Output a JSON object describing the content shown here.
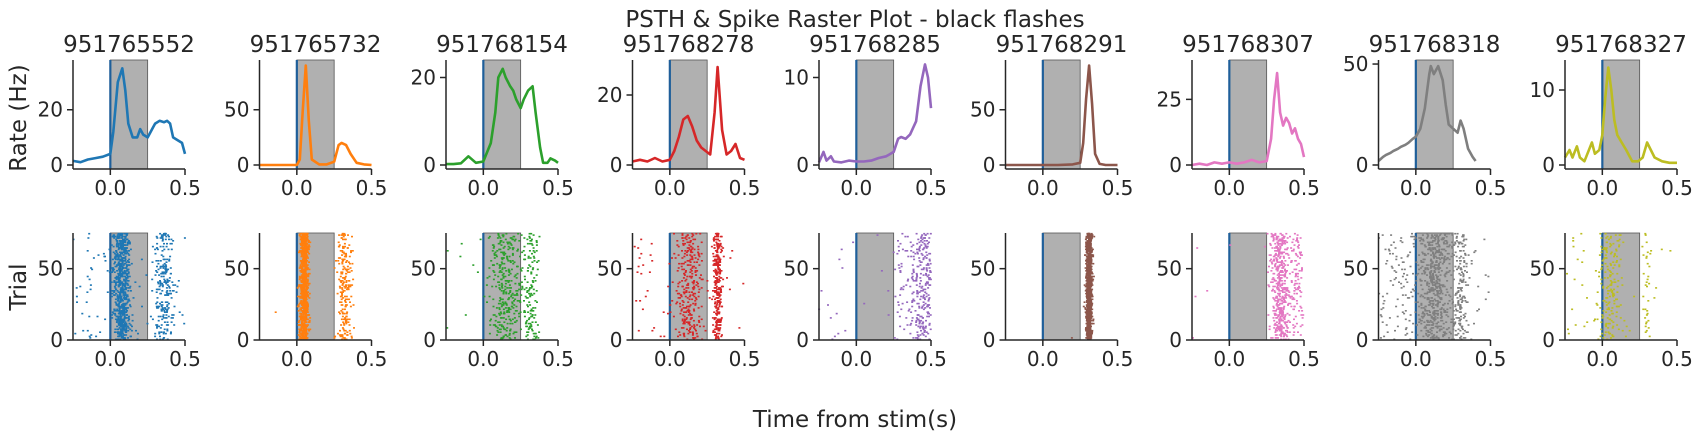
{
  "figure": {
    "title": "PSTH & Spike Raster Plot - black flashes",
    "xlabel": "Time from stim(s)",
    "psth_ylabel": "Rate (Hz)",
    "raster_ylabel": "Trial"
  },
  "chart_data": {
    "type": "line",
    "stim_window": [
      0,
      0.25
    ],
    "stim_onset": 0,
    "xlim": [
      -0.25,
      0.5
    ],
    "xticks": [
      0.0,
      0.5
    ],
    "xtick_labels": [
      "0.0",
      "0.5"
    ],
    "raster_ylim": [
      0,
      75
    ],
    "raster_yticks": [
      0,
      50
    ],
    "n_trials": 75,
    "colors": {
      "stim_shade": "#b0b0b0",
      "stim_line": "#1f5f9a"
    },
    "units": [
      {
        "name": "951765552",
        "color": "#1f77b4",
        "ylim": [
          0,
          38
        ],
        "yticks": [
          0,
          20
        ],
        "psth_x": [
          -0.25,
          -0.2,
          -0.15,
          -0.1,
          -0.05,
          0,
          0.02,
          0.05,
          0.08,
          0.1,
          0.12,
          0.15,
          0.18,
          0.2,
          0.22,
          0.25,
          0.28,
          0.3,
          0.33,
          0.36,
          0.38,
          0.4,
          0.42,
          0.45,
          0.48,
          0.5
        ],
        "psth_y": [
          1.5,
          1,
          2,
          2.5,
          3,
          4,
          12,
          30,
          35,
          27,
          15,
          10,
          10,
          13,
          11,
          10,
          13,
          15,
          16,
          15.5,
          16,
          15,
          10,
          9,
          8,
          4
        ],
        "raster": {
          "pre_density": 0.25,
          "peak": 0.08,
          "peak_width": 0.06,
          "peak_density": 6,
          "late": 0.36,
          "late_width": 0.07,
          "late_density": 3,
          "base_density": 0.5,
          "seed": 11
        }
      },
      {
        "name": "951765732",
        "color": "#ff7f0e",
        "ylim": [
          0,
          95
        ],
        "yticks": [
          0,
          50
        ],
        "psth_x": [
          -0.25,
          -0.15,
          -0.05,
          0,
          0.02,
          0.04,
          0.06,
          0.08,
          0.1,
          0.15,
          0.2,
          0.25,
          0.28,
          0.3,
          0.33,
          0.36,
          0.4,
          0.45,
          0.5
        ],
        "psth_y": [
          0,
          0,
          0,
          0,
          5,
          50,
          90,
          40,
          5,
          0.5,
          0.5,
          3,
          18,
          20,
          18,
          10,
          2,
          0.5,
          0
        ],
        "raster": {
          "pre_density": 0.02,
          "peak": 0.05,
          "peak_width": 0.03,
          "peak_density": 8,
          "late": 0.32,
          "late_width": 0.05,
          "late_density": 3,
          "base_density": 0.02,
          "seed": 23
        }
      },
      {
        "name": "951768154",
        "color": "#2ca02c",
        "ylim": [
          0,
          24
        ],
        "yticks": [
          0,
          20
        ],
        "psth_x": [
          -0.25,
          -0.2,
          -0.15,
          -0.1,
          -0.05,
          0,
          0.05,
          0.08,
          0.1,
          0.13,
          0.15,
          0.18,
          0.2,
          0.22,
          0.25,
          0.27,
          0.3,
          0.33,
          0.35,
          0.38,
          0.4,
          0.43,
          0.45,
          0.48,
          0.5
        ],
        "psth_y": [
          0.2,
          0.2,
          0.4,
          2,
          0.5,
          0.8,
          5,
          12,
          20,
          22,
          20,
          18,
          17,
          15,
          13,
          15,
          17,
          18,
          12,
          4,
          0.5,
          0.5,
          1.5,
          1,
          0.5
        ],
        "raster": {
          "pre_density": 0.05,
          "peak": 0.15,
          "peak_width": 0.12,
          "peak_density": 3,
          "late": 0.32,
          "late_width": 0.05,
          "late_density": 1.5,
          "base_density": 0.05,
          "seed": 37
        }
      },
      {
        "name": "951768278",
        "color": "#d62728",
        "ylim": [
          0,
          30
        ],
        "yticks": [
          0,
          20
        ],
        "psth_x": [
          -0.25,
          -0.2,
          -0.15,
          -0.1,
          -0.05,
          0,
          0.03,
          0.06,
          0.09,
          0.12,
          0.15,
          0.18,
          0.21,
          0.24,
          0.27,
          0.3,
          0.32,
          0.35,
          0.38,
          0.41,
          0.44,
          0.47,
          0.5
        ],
        "psth_y": [
          1,
          1.5,
          1,
          2,
          1,
          1.5,
          4,
          8,
          13,
          14,
          11,
          7,
          5,
          4,
          3,
          15,
          28,
          10,
          3,
          4,
          6,
          2,
          1.5
        ],
        "raster": {
          "pre_density": 0.3,
          "peak": 0.13,
          "peak_width": 0.1,
          "peak_density": 2.5,
          "late": 0.32,
          "late_width": 0.03,
          "late_density": 4,
          "base_density": 0.3,
          "seed": 53
        }
      },
      {
        "name": "951768285",
        "color": "#9467bd",
        "ylim": [
          0,
          12
        ],
        "yticks": [
          0,
          10
        ],
        "psth_x": [
          -0.25,
          -0.22,
          -0.2,
          -0.17,
          -0.15,
          -0.1,
          -0.05,
          0,
          0.05,
          0.1,
          0.15,
          0.2,
          0.25,
          0.28,
          0.3,
          0.33,
          0.36,
          0.4,
          0.43,
          0.46,
          0.48,
          0.5
        ],
        "psth_y": [
          0.3,
          1.5,
          0.5,
          1,
          0.4,
          0.3,
          0.5,
          0.4,
          0.4,
          0.5,
          0.8,
          1,
          1.5,
          3,
          3.2,
          3,
          3.5,
          5,
          9,
          11.5,
          10,
          6.5
        ],
        "raster": {
          "pre_density": 0.15,
          "peak": 0.45,
          "peak_width": 0.1,
          "peak_density": 2.5,
          "late": 0.3,
          "late_width": 0.1,
          "late_density": 0.6,
          "base_density": 0.08,
          "seed": 71
        }
      },
      {
        "name": "951768291",
        "color": "#8c564b",
        "ylim": [
          0,
          95
        ],
        "yticks": [
          0,
          50
        ],
        "psth_x": [
          -0.25,
          -0.15,
          -0.05,
          0,
          0.1,
          0.2,
          0.25,
          0.27,
          0.29,
          0.31,
          0.33,
          0.35,
          0.38,
          0.42,
          0.5
        ],
        "psth_y": [
          0,
          0,
          0,
          0,
          0,
          0.5,
          2,
          20,
          60,
          90,
          55,
          10,
          1,
          0,
          0
        ],
        "raster": {
          "pre_density": 0.0,
          "peak": 0.31,
          "peak_width": 0.02,
          "peak_density": 9,
          "late": 0.31,
          "late_width": 0.02,
          "late_density": 0,
          "base_density": 0.02,
          "seed": 89
        }
      },
      {
        "name": "951768307",
        "color": "#e377c2",
        "ylim": [
          0,
          40
        ],
        "yticks": [
          0,
          25
        ],
        "psth_x": [
          -0.25,
          -0.2,
          -0.15,
          -0.1,
          -0.05,
          0,
          0.05,
          0.1,
          0.15,
          0.2,
          0.25,
          0.28,
          0.3,
          0.32,
          0.34,
          0.36,
          0.38,
          0.4,
          0.42,
          0.44,
          0.46,
          0.48,
          0.5
        ],
        "psth_y": [
          0,
          0.5,
          0,
          1,
          0.5,
          1,
          0.5,
          1,
          2,
          1,
          1.5,
          10,
          25,
          35,
          20,
          15,
          18,
          16,
          12,
          14,
          10,
          8,
          3
        ],
        "raster": {
          "pre_density": 0.03,
          "peak": 0.34,
          "peak_width": 0.07,
          "peak_density": 4,
          "late": 0.45,
          "late_width": 0.05,
          "late_density": 1.5,
          "base_density": 0.05,
          "seed": 97
        }
      },
      {
        "name": "951768318",
        "color": "#7f7f7f",
        "ylim": [
          0,
          52
        ],
        "yticks": [
          0,
          50
        ],
        "psth_x": [
          -0.25,
          -0.22,
          -0.2,
          -0.17,
          -0.15,
          -0.12,
          -0.1,
          -0.07,
          -0.05,
          -0.02,
          0,
          0.03,
          0.06,
          0.09,
          0.1,
          0.12,
          0.15,
          0.18,
          0.2,
          0.22,
          0.25,
          0.28,
          0.3,
          0.32,
          0.35,
          0.38,
          0.4
        ],
        "psth_y": [
          2,
          4,
          5,
          6,
          7,
          8,
          9,
          10,
          11,
          13,
          14,
          18,
          28,
          45,
          49,
          45,
          49,
          42,
          30,
          20,
          18,
          16,
          22,
          18,
          8,
          4,
          2
        ],
        "raster": {
          "pre_density": 1.2,
          "peak": 0.13,
          "peak_width": 0.12,
          "peak_density": 5,
          "late": 0.3,
          "late_width": 0.05,
          "late_density": 2,
          "base_density": 0.8,
          "seed": 113
        }
      },
      {
        "name": "951768327",
        "color": "#bcbd22",
        "ylim": [
          0,
          14
        ],
        "yticks": [
          0,
          10
        ],
        "psth_x": [
          -0.25,
          -0.22,
          -0.2,
          -0.17,
          -0.15,
          -0.12,
          -0.1,
          -0.07,
          -0.05,
          -0.02,
          0,
          0.02,
          0.04,
          0.06,
          0.08,
          0.1,
          0.13,
          0.16,
          0.2,
          0.24,
          0.27,
          0.3,
          0.35,
          0.4,
          0.45,
          0.5
        ],
        "psth_y": [
          1,
          2,
          1,
          2.5,
          1,
          0.5,
          1.5,
          3,
          1.5,
          2,
          4,
          9,
          13,
          10,
          6,
          4,
          3,
          2,
          0.5,
          0.5,
          1,
          3,
          1,
          0.5,
          0.3,
          0.3
        ],
        "raster": {
          "pre_density": 0.4,
          "peak": 0.05,
          "peak_width": 0.08,
          "peak_density": 1.5,
          "late": 0.3,
          "late_width": 0.04,
          "late_density": 0.4,
          "base_density": 0.1,
          "seed": 131
        }
      }
    ]
  }
}
